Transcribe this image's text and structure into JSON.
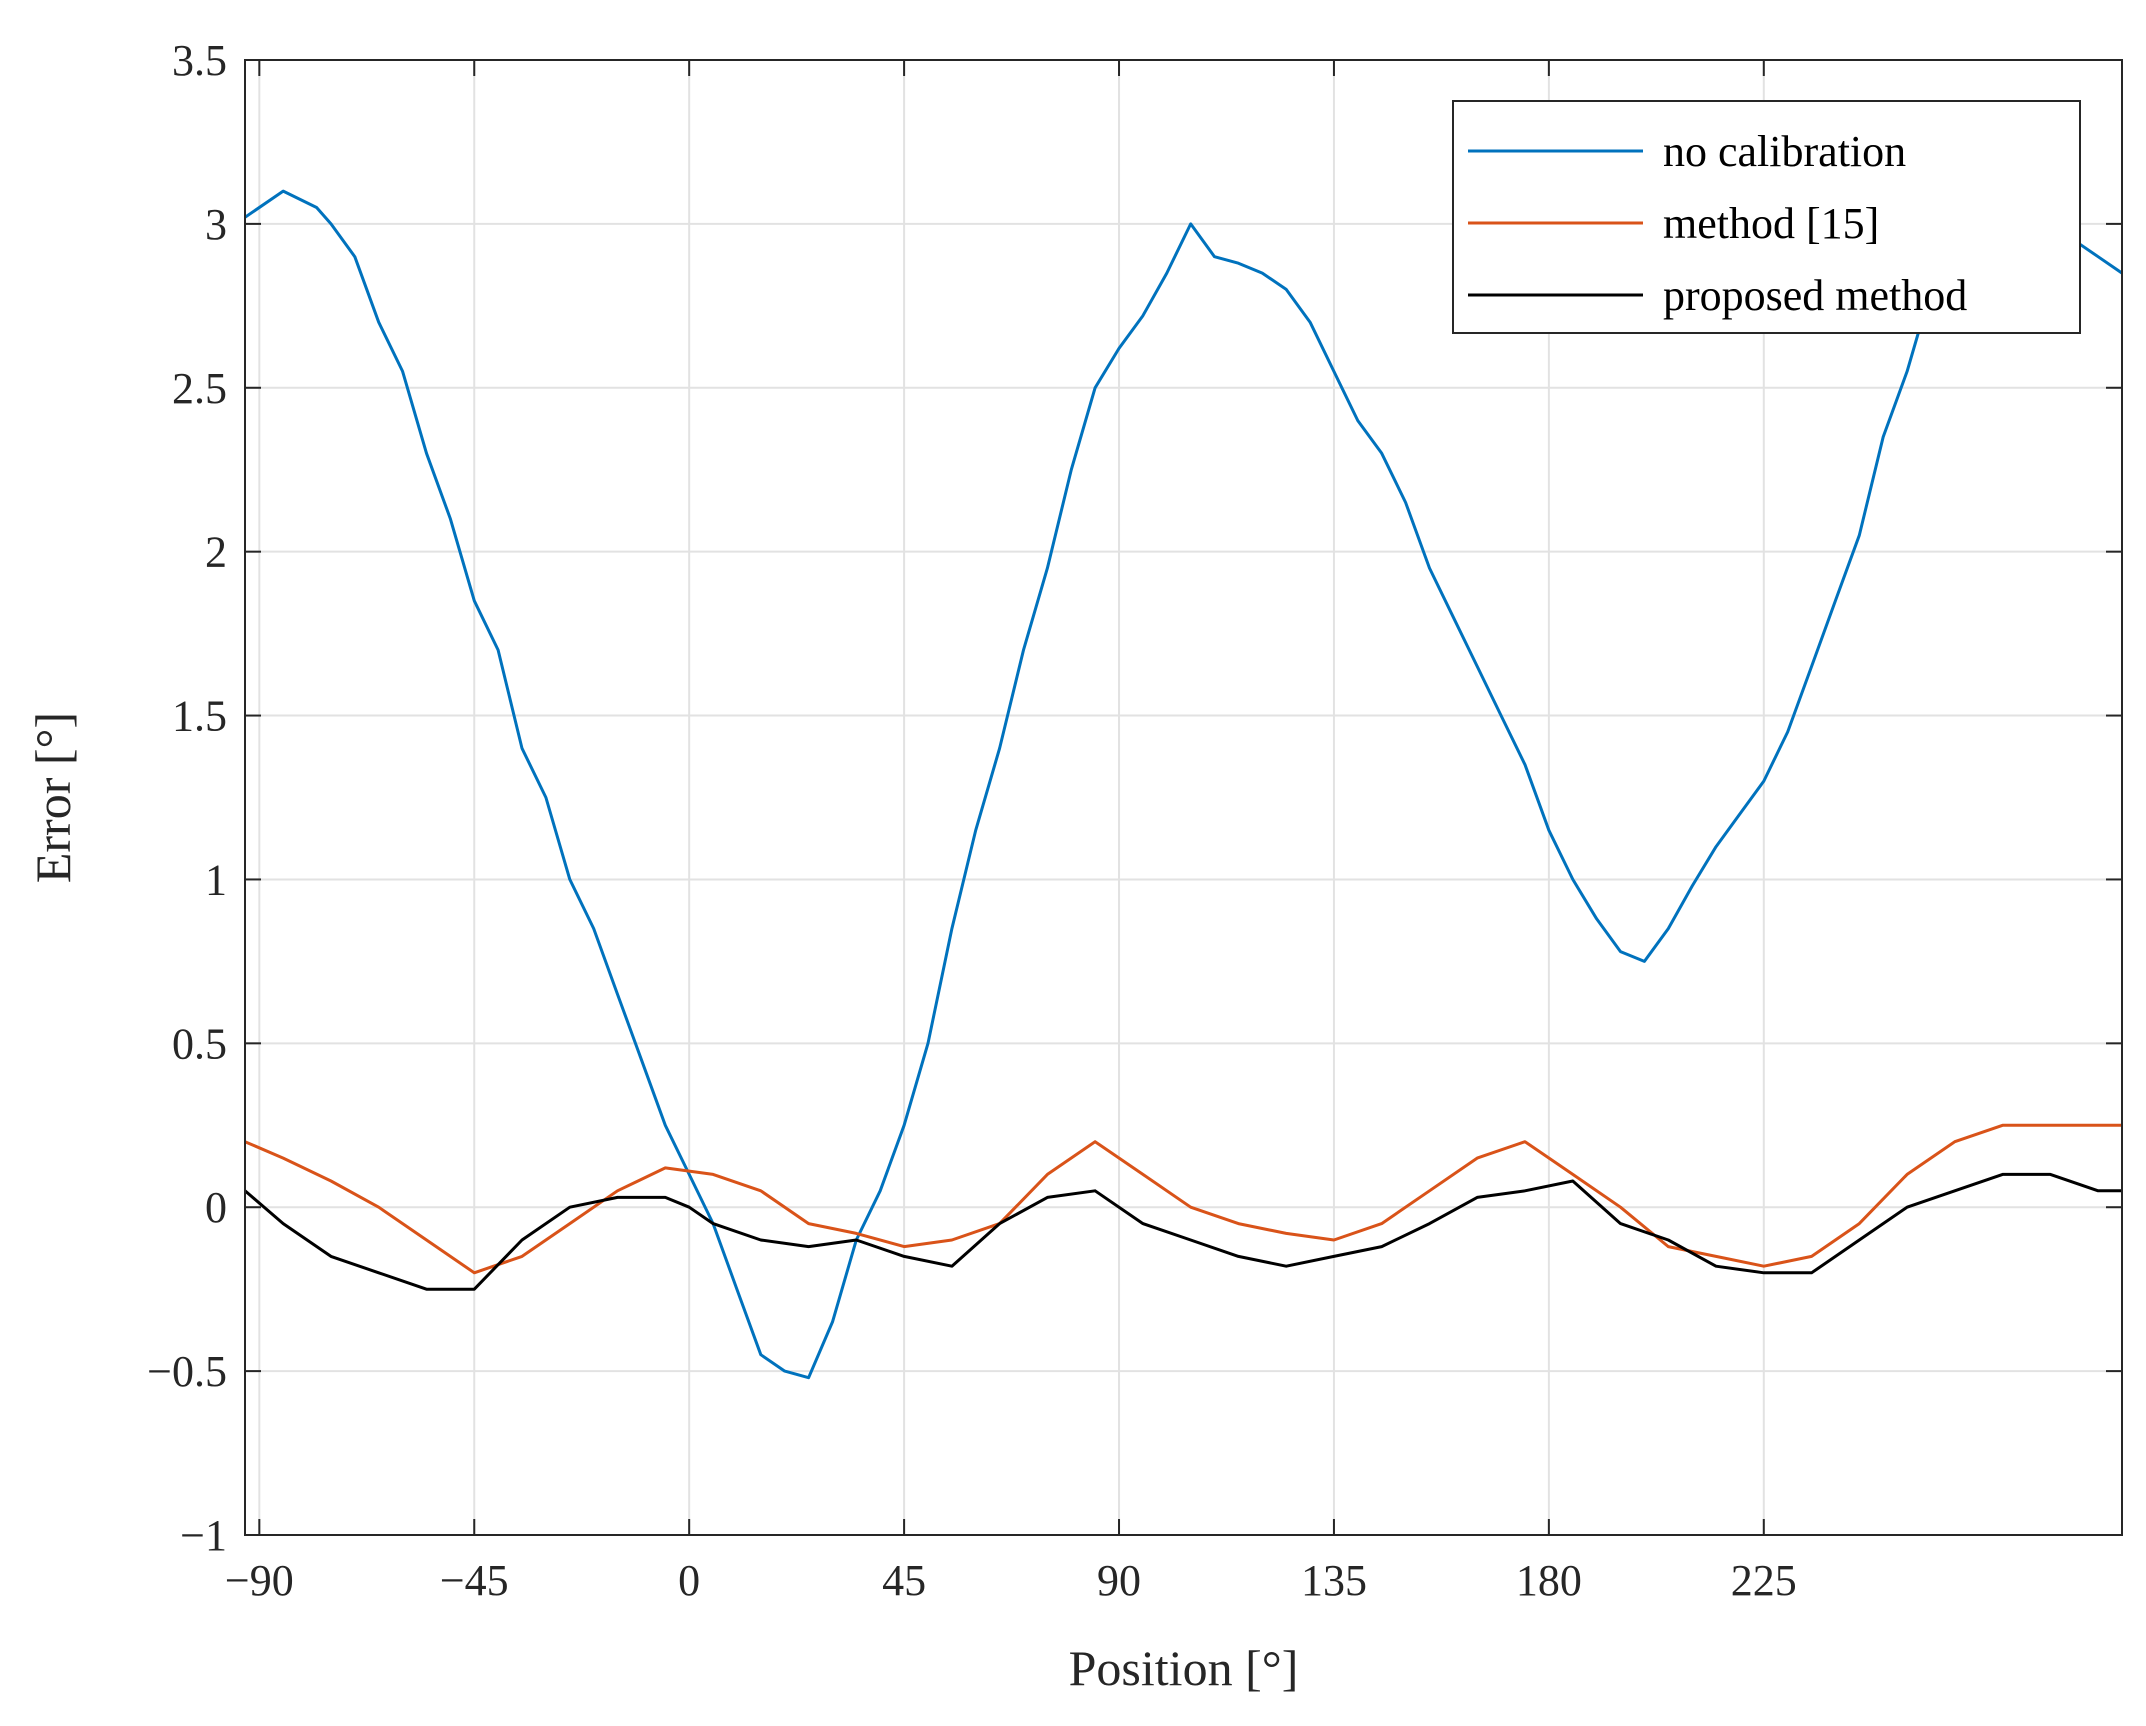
{
  "chart_data": {
    "type": "line",
    "title": "",
    "xlabel": "Position [°]",
    "ylabel": "Error [°]",
    "xlim": [
      -93,
      300
    ],
    "ylim": [
      -1,
      3.5
    ],
    "xticks": [
      -90,
      -45,
      0,
      45,
      90,
      135,
      180,
      225
    ],
    "xtick_labels": [
      "−90",
      "−45",
      "0",
      "45",
      "90",
      "135",
      "180",
      "225"
    ],
    "yticks": [
      -1,
      -0.5,
      0,
      0.5,
      1,
      1.5,
      2,
      2.5,
      3,
      3.5
    ],
    "ytick_labels": [
      "−1",
      "−0.5",
      "0",
      "0.5",
      "1",
      "1.5",
      "2",
      "2.5",
      "3",
      "3.5"
    ],
    "grid": true,
    "legend_position": "top-right",
    "series": [
      {
        "name": "no calibration",
        "color": "#0072BD",
        "x": [
          -93,
          -85,
          -78,
          -75,
          -70,
          -65,
          -60,
          -55,
          -50,
          -45,
          -40,
          -35,
          -30,
          -25,
          -20,
          -15,
          -10,
          -5,
          0,
          5,
          10,
          15,
          20,
          25,
          30,
          35,
          40,
          45,
          50,
          55,
          60,
          65,
          70,
          75,
          80,
          85,
          90,
          95,
          100,
          105,
          110,
          115,
          120,
          125,
          130,
          135,
          140,
          145,
          150,
          155,
          160,
          165,
          170,
          175,
          180,
          185,
          190,
          195,
          200,
          205,
          210,
          215,
          220,
          225,
          230,
          235,
          240,
          245,
          250,
          255,
          260,
          265,
          270,
          275,
          280,
          285,
          290,
          295,
          300
        ],
        "y": [
          3.02,
          3.1,
          3.05,
          3.0,
          2.9,
          2.7,
          2.55,
          2.3,
          2.1,
          1.85,
          1.7,
          1.4,
          1.25,
          1.0,
          0.85,
          0.65,
          0.45,
          0.25,
          0.1,
          -0.05,
          -0.25,
          -0.45,
          -0.5,
          -0.52,
          -0.35,
          -0.1,
          0.05,
          0.25,
          0.5,
          0.85,
          1.15,
          1.4,
          1.7,
          1.95,
          2.25,
          2.5,
          2.62,
          2.72,
          2.85,
          3.0,
          2.9,
          2.88,
          2.85,
          2.8,
          2.7,
          2.55,
          2.4,
          2.3,
          2.15,
          1.95,
          1.8,
          1.65,
          1.5,
          1.35,
          1.15,
          1.0,
          0.88,
          0.78,
          0.75,
          0.85,
          0.98,
          1.1,
          1.2,
          1.3,
          1.45,
          1.65,
          1.85,
          2.05,
          2.35,
          2.55,
          2.8,
          2.95,
          3.05,
          3.1,
          3.05,
          3.0,
          2.95,
          2.9,
          2.85
        ]
      },
      {
        "name": "method [15]",
        "color": "#D95319",
        "x": [
          -93,
          -85,
          -75,
          -65,
          -55,
          -45,
          -35,
          -25,
          -15,
          -5,
          5,
          15,
          25,
          35,
          45,
          55,
          65,
          75,
          85,
          95,
          105,
          115,
          125,
          135,
          145,
          155,
          165,
          175,
          185,
          195,
          205,
          215,
          225,
          235,
          245,
          255,
          265,
          275,
          285,
          295,
          300
        ],
        "y": [
          0.2,
          0.15,
          0.08,
          0.0,
          -0.1,
          -0.2,
          -0.15,
          -0.05,
          0.05,
          0.12,
          0.1,
          0.05,
          -0.05,
          -0.08,
          -0.12,
          -0.1,
          -0.05,
          0.1,
          0.2,
          0.1,
          0.0,
          -0.05,
          -0.08,
          -0.1,
          -0.05,
          0.05,
          0.15,
          0.2,
          0.1,
          0.0,
          -0.12,
          -0.15,
          -0.18,
          -0.15,
          -0.05,
          0.1,
          0.2,
          0.25,
          0.25,
          0.25,
          0.25
        ]
      },
      {
        "name": "proposed method",
        "color": "#000000",
        "x": [
          -93,
          -85,
          -75,
          -65,
          -55,
          -45,
          -35,
          -25,
          -15,
          -5,
          0,
          5,
          15,
          25,
          35,
          45,
          55,
          65,
          75,
          85,
          95,
          105,
          115,
          125,
          135,
          145,
          155,
          165,
          175,
          185,
          195,
          205,
          215,
          225,
          235,
          245,
          255,
          265,
          275,
          285,
          295,
          300
        ],
        "y": [
          0.05,
          -0.05,
          -0.15,
          -0.2,
          -0.25,
          -0.25,
          -0.1,
          0.0,
          0.03,
          0.03,
          0.0,
          -0.05,
          -0.1,
          -0.12,
          -0.1,
          -0.15,
          -0.18,
          -0.05,
          0.03,
          0.05,
          -0.05,
          -0.1,
          -0.15,
          -0.18,
          -0.15,
          -0.12,
          -0.05,
          0.03,
          0.05,
          0.08,
          -0.05,
          -0.1,
          -0.18,
          -0.2,
          -0.2,
          -0.1,
          0.0,
          0.05,
          0.1,
          0.1,
          0.05,
          0.05
        ]
      }
    ]
  }
}
